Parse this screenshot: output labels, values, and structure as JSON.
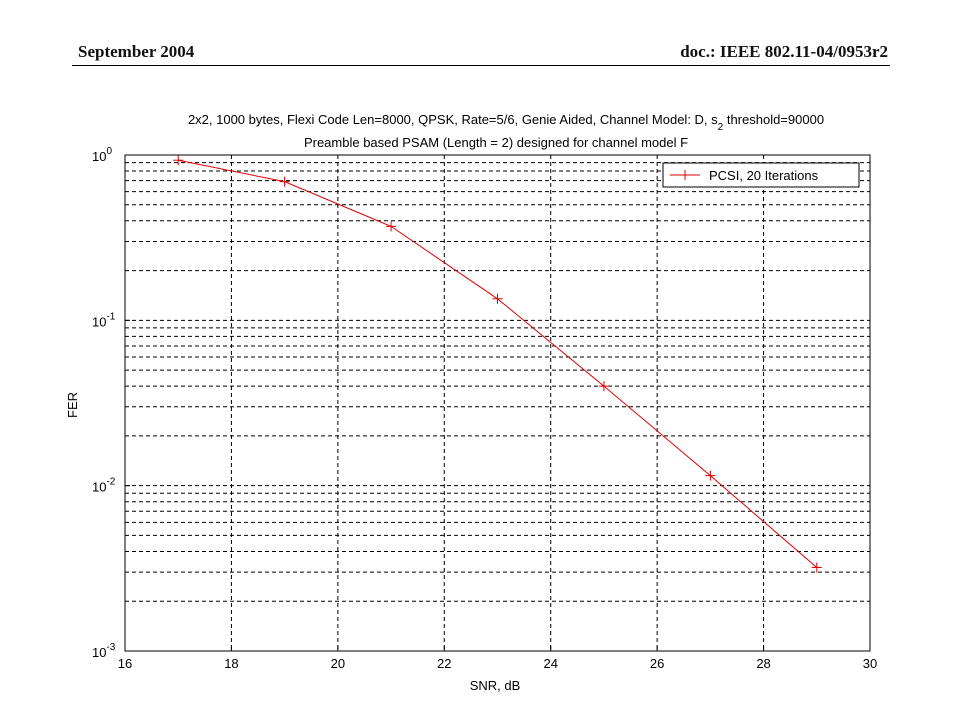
{
  "header": {
    "date": "September 2004",
    "doc": "doc.: IEEE 802.11-04/0953r2"
  },
  "chart_data": {
    "type": "line",
    "title_line1": "2x2, 1000 bytes, Flexi Code Len=8000, QPSK, Rate=5/6, Genie Aided, Channel Model: D, s",
    "title_line1_sub": "2",
    "title_line1_tail": " threshold=90000",
    "title_line2": "Preamble based PSAM (Length = 2) designed for channel model F",
    "xlabel": "SNR, dB",
    "ylabel": "FER",
    "xlim": [
      16,
      30
    ],
    "ylim": [
      0.001,
      1
    ],
    "yscale": "log",
    "xticks": [
      16,
      18,
      20,
      22,
      24,
      26,
      28,
      30
    ],
    "xtick_labels": [
      "16",
      "18",
      "20",
      "22",
      "24",
      "26",
      "28",
      "30"
    ],
    "ytick_labels": [
      {
        "base": "10",
        "exp": "0"
      },
      {
        "base": "10",
        "exp": "-1"
      },
      {
        "base": "10",
        "exp": "-2"
      },
      {
        "base": "10",
        "exp": "-3"
      }
    ],
    "grid": true,
    "legend_position": "top-right",
    "series": [
      {
        "name": "PCSI, 20 Iterations",
        "color": "#dd0000",
        "marker": "+",
        "x": [
          17,
          19,
          21,
          23,
          25,
          27,
          29
        ],
        "y": [
          0.93,
          0.69,
          0.37,
          0.135,
          0.04,
          0.0115,
          0.0032
        ]
      }
    ]
  }
}
